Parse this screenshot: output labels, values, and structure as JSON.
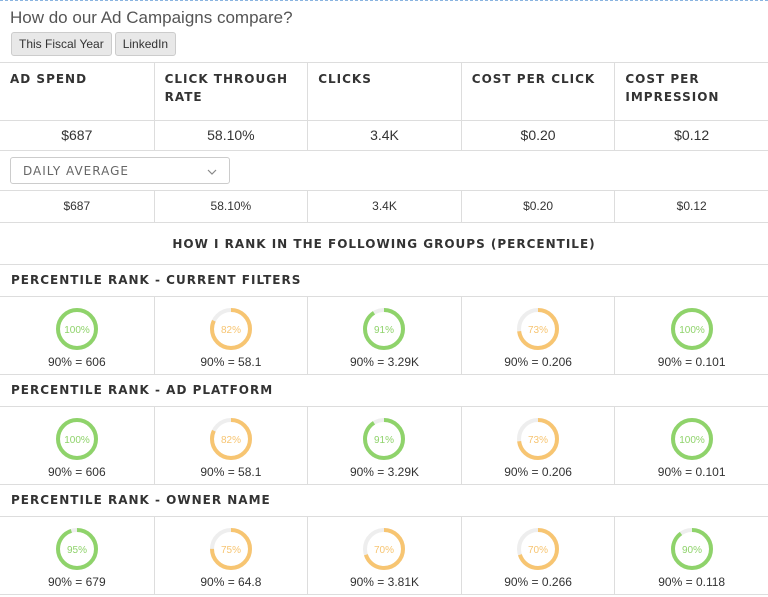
{
  "header": {
    "title": "How do our Ad Campaigns compare?",
    "filters": [
      "This Fiscal Year",
      "LinkedIn"
    ]
  },
  "table": {
    "columns": [
      "AD SPEND",
      "CLICK THROUGH RATE",
      "CLICKS",
      "COST PER CLICK",
      "COST PER IMPRESSION"
    ],
    "totals": [
      "$687",
      "58.10%",
      "3.4K",
      "$0.20",
      "$0.12"
    ],
    "dropdown": "DAILY AVERAGE",
    "daily": [
      "$687",
      "58.10%",
      "3.4K",
      "$0.20",
      "$0.12"
    ],
    "rank_heading": "HOW I RANK IN THE FOLLOWING GROUPS (PERCENTILE)",
    "groups": [
      {
        "name": "PERCENTILE RANK - CURRENT FILTERS",
        "cells": [
          {
            "value": 100,
            "label": "100%",
            "color": "#8fd36b",
            "benchmark": "90% = 606"
          },
          {
            "value": 82,
            "label": "82%",
            "color": "#f7c572",
            "benchmark": "90% = 58.1"
          },
          {
            "value": 91,
            "label": "91%",
            "color": "#8fd36b",
            "benchmark": "90% = 3.29K"
          },
          {
            "value": 73,
            "label": "73%",
            "color": "#f7c572",
            "benchmark": "90% = 0.206"
          },
          {
            "value": 100,
            "label": "100%",
            "color": "#8fd36b",
            "benchmark": "90% = 0.101"
          }
        ]
      },
      {
        "name": "PERCENTILE RANK - AD PLATFORM",
        "cells": [
          {
            "value": 100,
            "label": "100%",
            "color": "#8fd36b",
            "benchmark": "90% = 606"
          },
          {
            "value": 82,
            "label": "82%",
            "color": "#f7c572",
            "benchmark": "90% = 58.1"
          },
          {
            "value": 91,
            "label": "91%",
            "color": "#8fd36b",
            "benchmark": "90% = 3.29K"
          },
          {
            "value": 73,
            "label": "73%",
            "color": "#f7c572",
            "benchmark": "90% = 0.206"
          },
          {
            "value": 100,
            "label": "100%",
            "color": "#8fd36b",
            "benchmark": "90% = 0.101"
          }
        ]
      },
      {
        "name": "PERCENTILE RANK - OWNER NAME",
        "cells": [
          {
            "value": 95,
            "label": "95%",
            "color": "#8fd36b",
            "benchmark": "90% = 679"
          },
          {
            "value": 75,
            "label": "75%",
            "color": "#f7c572",
            "benchmark": "90% = 64.8"
          },
          {
            "value": 70,
            "label": "70%",
            "color": "#f7c572",
            "benchmark": "90% = 3.81K"
          },
          {
            "value": 70,
            "label": "70%",
            "color": "#f7c572",
            "benchmark": "90% = 0.266"
          },
          {
            "value": 90,
            "label": "90%",
            "color": "#8fd36b",
            "benchmark": "90% = 0.118"
          }
        ]
      }
    ]
  }
}
